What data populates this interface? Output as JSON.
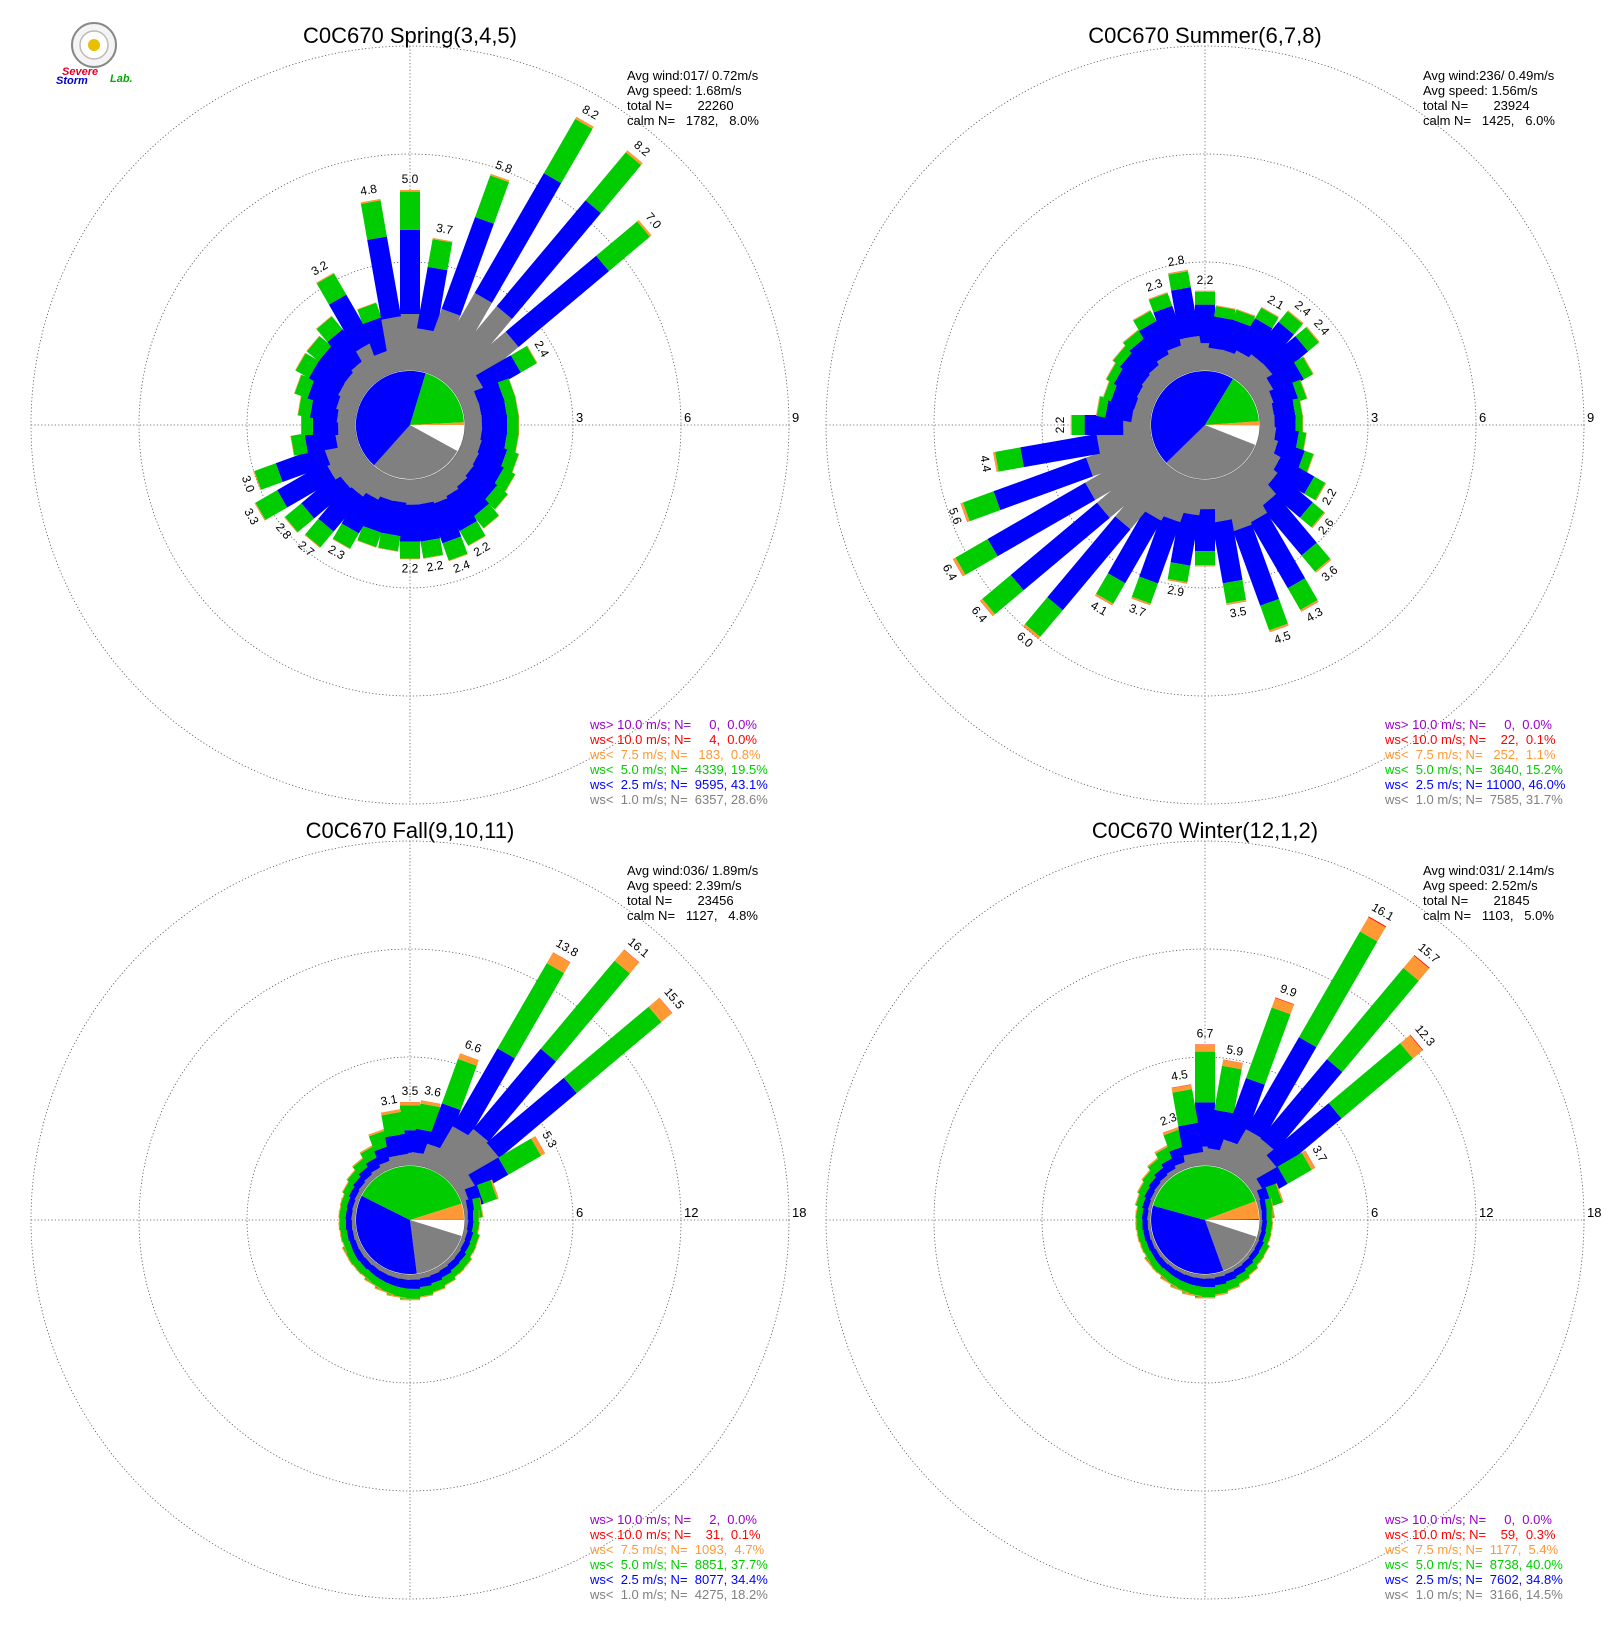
{
  "logo": {
    "word1": "Severe",
    "word2": "Storm",
    "word3": "Lab."
  },
  "colors": {
    "gray": "#808080",
    "blue": "#0000ff",
    "green": "#00cc00",
    "orange": "#ff9933",
    "red": "#ff0000",
    "purple": "#9900cc",
    "grid": "#555555"
  },
  "chart_data": [
    {
      "type": "wind-rose",
      "title": "C0C670 Spring(3,4,5)",
      "stats": [
        "Avg wind:017/ 0.72m/s",
        "Avg speed: 1.68m/s",
        "total N=       22260",
        "calm N=   1782,   8.0%"
      ],
      "rings": [
        3,
        6,
        9
      ],
      "ring_labels": [
        "3",
        "6",
        "9"
      ],
      "calm_fraction": 0.08,
      "class_fractions": [
        0.286,
        0.431,
        0.195,
        0.008,
        0.0,
        0.0
      ],
      "bar_labels": [
        {
          "dir": 0,
          "value": "5.0"
        },
        {
          "dir": 10,
          "value": "3.7"
        },
        {
          "dir": 20,
          "value": "5.8"
        },
        {
          "dir": 30,
          "value": "8.2"
        },
        {
          "dir": 40,
          "value": "8.2"
        },
        {
          "dir": 50,
          "value": "7.0"
        },
        {
          "dir": 60,
          "value": "2.4"
        },
        {
          "dir": 150,
          "value": "2.2"
        },
        {
          "dir": 160,
          "value": "2.4"
        },
        {
          "dir": 170,
          "value": "2.2"
        },
        {
          "dir": 180,
          "value": "2.2"
        },
        {
          "dir": 210,
          "value": "2.3"
        },
        {
          "dir": 220,
          "value": "2.7"
        },
        {
          "dir": 230,
          "value": "2.8"
        },
        {
          "dir": 240,
          "value": "3.3"
        },
        {
          "dir": 250,
          "value": "3.0"
        },
        {
          "dir": 330,
          "value": "3.2"
        },
        {
          "dir": 350,
          "value": "4.8"
        }
      ],
      "bars": [
        {
          "dir": 0,
          "total": 5.0
        },
        {
          "dir": 10,
          "total": 3.7
        },
        {
          "dir": 20,
          "total": 5.8
        },
        {
          "dir": 30,
          "total": 8.2
        },
        {
          "dir": 40,
          "total": 8.2
        },
        {
          "dir": 50,
          "total": 7.0
        },
        {
          "dir": 60,
          "total": 2.4
        },
        {
          "dir": 70,
          "total": 1.5
        },
        {
          "dir": 80,
          "total": 1.5
        },
        {
          "dir": 90,
          "total": 1.5
        },
        {
          "dir": 100,
          "total": 1.5
        },
        {
          "dir": 110,
          "total": 1.6
        },
        {
          "dir": 120,
          "total": 1.7
        },
        {
          "dir": 130,
          "total": 1.8
        },
        {
          "dir": 140,
          "total": 2.0
        },
        {
          "dir": 150,
          "total": 2.2
        },
        {
          "dir": 160,
          "total": 2.4
        },
        {
          "dir": 170,
          "total": 2.2
        },
        {
          "dir": 180,
          "total": 2.2
        },
        {
          "dir": 190,
          "total": 2.0
        },
        {
          "dir": 200,
          "total": 2.0
        },
        {
          "dir": 210,
          "total": 2.3
        },
        {
          "dir": 220,
          "total": 2.7
        },
        {
          "dir": 230,
          "total": 2.8
        },
        {
          "dir": 240,
          "total": 3.3
        },
        {
          "dir": 250,
          "total": 3.0
        },
        {
          "dir": 260,
          "total": 1.8
        },
        {
          "dir": 270,
          "total": 1.5
        },
        {
          "dir": 280,
          "total": 1.6
        },
        {
          "dir": 290,
          "total": 1.8
        },
        {
          "dir": 300,
          "total": 2.0
        },
        {
          "dir": 310,
          "total": 2.0
        },
        {
          "dir": 320,
          "total": 2.2
        },
        {
          "dir": 330,
          "total": 3.2
        },
        {
          "dir": 340,
          "total": 2.0
        },
        {
          "dir": 350,
          "total": 4.8
        }
      ],
      "legend": [
        {
          "text": "ws> 10.0 m/s; N=     0,  0.0%",
          "color": "#9900cc"
        },
        {
          "text": "ws< 10.0 m/s; N=     4,  0.0%",
          "color": "#ff0000"
        },
        {
          "text": "ws<  7.5 m/s; N=   183,  0.8%",
          "color": "#ff9933"
        },
        {
          "text": "ws<  5.0 m/s; N=  4339, 19.5%",
          "color": "#00cc00"
        },
        {
          "text": "ws<  2.5 m/s; N=  9595, 43.1%",
          "color": "#0000ff"
        },
        {
          "text": "ws<  1.0 m/s; N=  6357, 28.6%",
          "color": "#808080"
        }
      ]
    },
    {
      "type": "wind-rose",
      "title": "C0C670 Summer(6,7,8)",
      "stats": [
        "Avg wind:236/ 0.49m/s",
        "Avg speed: 1.56m/s",
        "total N=       23924",
        "calm N=   1425,   6.0%"
      ],
      "rings": [
        3,
        6,
        9
      ],
      "ring_labels": [
        "3",
        "6",
        "9"
      ],
      "calm_fraction": 0.06,
      "class_fractions": [
        0.317,
        0.46,
        0.152,
        0.011,
        0.001,
        0.0
      ],
      "bar_labels": [
        {
          "dir": 0,
          "value": "2.2"
        },
        {
          "dir": 30,
          "value": "2.1"
        },
        {
          "dir": 40,
          "value": "2.4"
        },
        {
          "dir": 50,
          "value": "2.4"
        },
        {
          "dir": 120,
          "value": "2.2"
        },
        {
          "dir": 130,
          "value": "2.6"
        },
        {
          "dir": 140,
          "value": "3.6"
        },
        {
          "dir": 150,
          "value": "4.3"
        },
        {
          "dir": 160,
          "value": "4.5"
        },
        {
          "dir": 170,
          "value": "3.5"
        },
        {
          "dir": 190,
          "value": "2.9"
        },
        {
          "dir": 200,
          "value": "3.7"
        },
        {
          "dir": 210,
          "value": "4.1"
        },
        {
          "dir": 220,
          "value": "6.0"
        },
        {
          "dir": 230,
          "value": "6.4"
        },
        {
          "dir": 240,
          "value": "6.4"
        },
        {
          "dir": 250,
          "value": "5.6"
        },
        {
          "dir": 260,
          "value": "4.4"
        },
        {
          "dir": 270,
          "value": "2.2"
        },
        {
          "dir": 340,
          "value": "2.3"
        },
        {
          "dir": 350,
          "value": "2.8"
        }
      ],
      "bars": [
        {
          "dir": 0,
          "total": 2.2
        },
        {
          "dir": 10,
          "total": 1.8
        },
        {
          "dir": 20,
          "total": 1.8
        },
        {
          "dir": 30,
          "total": 2.1
        },
        {
          "dir": 40,
          "total": 2.4
        },
        {
          "dir": 50,
          "total": 2.4
        },
        {
          "dir": 60,
          "total": 1.8
        },
        {
          "dir": 70,
          "total": 1.4
        },
        {
          "dir": 80,
          "total": 1.2
        },
        {
          "dir": 90,
          "total": 1.2
        },
        {
          "dir": 100,
          "total": 1.3
        },
        {
          "dir": 110,
          "total": 1.6
        },
        {
          "dir": 120,
          "total": 2.2
        },
        {
          "dir": 130,
          "total": 2.6
        },
        {
          "dir": 140,
          "total": 3.6
        },
        {
          "dir": 150,
          "total": 4.3
        },
        {
          "dir": 160,
          "total": 4.5
        },
        {
          "dir": 170,
          "total": 3.5
        },
        {
          "dir": 180,
          "total": 2.4
        },
        {
          "dir": 190,
          "total": 2.9
        },
        {
          "dir": 200,
          "total": 3.7
        },
        {
          "dir": 210,
          "total": 4.1
        },
        {
          "dir": 220,
          "total": 6.0
        },
        {
          "dir": 230,
          "total": 6.4
        },
        {
          "dir": 240,
          "total": 6.4
        },
        {
          "dir": 250,
          "total": 5.6
        },
        {
          "dir": 260,
          "total": 4.4
        },
        {
          "dir": 270,
          "total": 2.2
        },
        {
          "dir": 280,
          "total": 1.5
        },
        {
          "dir": 290,
          "total": 1.4
        },
        {
          "dir": 300,
          "total": 1.5
        },
        {
          "dir": 310,
          "total": 1.6
        },
        {
          "dir": 320,
          "total": 1.7
        },
        {
          "dir": 330,
          "total": 2.0
        },
        {
          "dir": 340,
          "total": 2.3
        },
        {
          "dir": 350,
          "total": 2.8
        }
      ],
      "legend": [
        {
          "text": "ws> 10.0 m/s; N=     0,  0.0%",
          "color": "#9900cc"
        },
        {
          "text": "ws< 10.0 m/s; N=    22,  0.1%",
          "color": "#ff0000"
        },
        {
          "text": "ws<  7.5 m/s; N=   252,  1.1%",
          "color": "#ff9933"
        },
        {
          "text": "ws<  5.0 m/s; N=  3640, 15.2%",
          "color": "#00cc00"
        },
        {
          "text": "ws<  2.5 m/s; N= 11000, 46.0%",
          "color": "#0000ff"
        },
        {
          "text": "ws<  1.0 m/s; N=  7585, 31.7%",
          "color": "#808080"
        }
      ]
    },
    {
      "type": "wind-rose",
      "title": "C0C670 Fall(9,10,11)",
      "stats": [
        "Avg wind:036/ 1.89m/s",
        "Avg speed: 2.39m/s",
        "total N=       23456",
        "calm N=   1127,   4.8%"
      ],
      "rings": [
        6,
        12,
        18
      ],
      "ring_labels": [
        "6",
        "12",
        "18"
      ],
      "calm_fraction": 0.048,
      "class_fractions": [
        0.182,
        0.344,
        0.377,
        0.047,
        0.001,
        0.0
      ],
      "bar_labels": [
        {
          "dir": 0,
          "value": "3.5"
        },
        {
          "dir": 10,
          "value": "3.6"
        },
        {
          "dir": 20,
          "value": "6.6"
        },
        {
          "dir": 30,
          "value": "13.8"
        },
        {
          "dir": 40,
          "value": "16.1"
        },
        {
          "dir": 50,
          "value": "15.5"
        },
        {
          "dir": 60,
          "value": "5.3"
        },
        {
          "dir": 350,
          "value": "3.1"
        }
      ],
      "bars": [
        {
          "dir": 0,
          "total": 3.5
        },
        {
          "dir": 10,
          "total": 3.6
        },
        {
          "dir": 20,
          "total": 6.6
        },
        {
          "dir": 30,
          "total": 13.8
        },
        {
          "dir": 40,
          "total": 16.1
        },
        {
          "dir": 50,
          "total": 15.5
        },
        {
          "dir": 60,
          "total": 5.3
        },
        {
          "dir": 70,
          "total": 2.0
        },
        {
          "dir": 80,
          "total": 1.0
        },
        {
          "dir": 90,
          "total": 0.8
        },
        {
          "dir": 100,
          "total": 0.8
        },
        {
          "dir": 110,
          "total": 0.9
        },
        {
          "dir": 120,
          "total": 0.9
        },
        {
          "dir": 130,
          "total": 1.0
        },
        {
          "dir": 140,
          "total": 1.0
        },
        {
          "dir": 150,
          "total": 1.1
        },
        {
          "dir": 160,
          "total": 1.2
        },
        {
          "dir": 170,
          "total": 1.3
        },
        {
          "dir": 180,
          "total": 1.4
        },
        {
          "dir": 190,
          "total": 1.3
        },
        {
          "dir": 200,
          "total": 1.2
        },
        {
          "dir": 210,
          "total": 1.1
        },
        {
          "dir": 220,
          "total": 1.0
        },
        {
          "dir": 230,
          "total": 1.0
        },
        {
          "dir": 240,
          "total": 1.0
        },
        {
          "dir": 250,
          "total": 0.9
        },
        {
          "dir": 260,
          "total": 0.9
        },
        {
          "dir": 270,
          "total": 0.9
        },
        {
          "dir": 280,
          "total": 0.9
        },
        {
          "dir": 290,
          "total": 0.9
        },
        {
          "dir": 300,
          "total": 1.0
        },
        {
          "dir": 310,
          "total": 1.1
        },
        {
          "dir": 320,
          "total": 1.3
        },
        {
          "dir": 330,
          "total": 1.6
        },
        {
          "dir": 340,
          "total": 2.2
        },
        {
          "dir": 350,
          "total": 3.1
        }
      ],
      "legend": [
        {
          "text": "ws> 10.0 m/s; N=     2,  0.0%",
          "color": "#9900cc"
        },
        {
          "text": "ws< 10.0 m/s; N=    31,  0.1%",
          "color": "#ff0000"
        },
        {
          "text": "ws<  7.5 m/s; N=  1093,  4.7%",
          "color": "#ff9933"
        },
        {
          "text": "ws<  5.0 m/s; N=  8851, 37.7%",
          "color": "#00cc00"
        },
        {
          "text": "ws<  2.5 m/s; N=  8077, 34.4%",
          "color": "#0000ff"
        },
        {
          "text": "ws<  1.0 m/s; N=  4275, 18.2%",
          "color": "#808080"
        }
      ]
    },
    {
      "type": "wind-rose",
      "title": "C0C670 Winter(12,1,2)",
      "stats": [
        "Avg wind:031/ 2.14m/s",
        "Avg speed: 2.52m/s",
        "total N=       21845",
        "calm N=   1103,   5.0%"
      ],
      "rings": [
        6,
        12,
        18
      ],
      "ring_labels": [
        "6",
        "12",
        "18"
      ],
      "calm_fraction": 0.05,
      "class_fractions": [
        0.145,
        0.348,
        0.4,
        0.054,
        0.003,
        0.0
      ],
      "bar_labels": [
        {
          "dir": 0,
          "value": "6.7"
        },
        {
          "dir": 10,
          "value": "5.9"
        },
        {
          "dir": 20,
          "value": "9.9"
        },
        {
          "dir": 30,
          "value": "16.1"
        },
        {
          "dir": 40,
          "value": "15.7"
        },
        {
          "dir": 50,
          "value": "12.3"
        },
        {
          "dir": 60,
          "value": "3.7"
        },
        {
          "dir": 340,
          "value": "2.3"
        },
        {
          "dir": 350,
          "value": "4.5"
        }
      ],
      "bars": [
        {
          "dir": 0,
          "total": 6.7
        },
        {
          "dir": 10,
          "total": 5.9
        },
        {
          "dir": 20,
          "total": 9.9
        },
        {
          "dir": 30,
          "total": 16.1
        },
        {
          "dir": 40,
          "total": 15.7
        },
        {
          "dir": 50,
          "total": 12.3
        },
        {
          "dir": 60,
          "total": 3.7
        },
        {
          "dir": 70,
          "total": 1.4
        },
        {
          "dir": 80,
          "total": 0.8
        },
        {
          "dir": 90,
          "total": 0.7
        },
        {
          "dir": 100,
          "total": 0.7
        },
        {
          "dir": 110,
          "total": 0.7
        },
        {
          "dir": 120,
          "total": 0.8
        },
        {
          "dir": 130,
          "total": 0.8
        },
        {
          "dir": 140,
          "total": 0.9
        },
        {
          "dir": 150,
          "total": 1.0
        },
        {
          "dir": 160,
          "total": 1.1
        },
        {
          "dir": 170,
          "total": 1.2
        },
        {
          "dir": 180,
          "total": 1.3
        },
        {
          "dir": 190,
          "total": 1.2
        },
        {
          "dir": 200,
          "total": 1.1
        },
        {
          "dir": 210,
          "total": 1.0
        },
        {
          "dir": 220,
          "total": 0.9
        },
        {
          "dir": 230,
          "total": 0.9
        },
        {
          "dir": 240,
          "total": 0.8
        },
        {
          "dir": 250,
          "total": 0.8
        },
        {
          "dir": 260,
          "total": 0.8
        },
        {
          "dir": 270,
          "total": 0.8
        },
        {
          "dir": 280,
          "total": 0.8
        },
        {
          "dir": 290,
          "total": 0.9
        },
        {
          "dir": 300,
          "total": 1.0
        },
        {
          "dir": 310,
          "total": 1.1
        },
        {
          "dir": 320,
          "total": 1.3
        },
        {
          "dir": 330,
          "total": 1.6
        },
        {
          "dir": 340,
          "total": 2.3
        },
        {
          "dir": 350,
          "total": 4.5
        }
      ],
      "legend": [
        {
          "text": "ws> 10.0 m/s; N=     0,  0.0%",
          "color": "#9900cc"
        },
        {
          "text": "ws< 10.0 m/s; N=    59,  0.3%",
          "color": "#ff0000"
        },
        {
          "text": "ws<  7.5 m/s; N=  1177,  5.4%",
          "color": "#ff9933"
        },
        {
          "text": "ws<  5.0 m/s; N=  8738, 40.0%",
          "color": "#00cc00"
        },
        {
          "text": "ws<  2.5 m/s; N=  7602, 34.8%",
          "color": "#0000ff"
        },
        {
          "text": "ws<  1.0 m/s; N=  3166, 14.5%",
          "color": "#808080"
        }
      ]
    }
  ]
}
